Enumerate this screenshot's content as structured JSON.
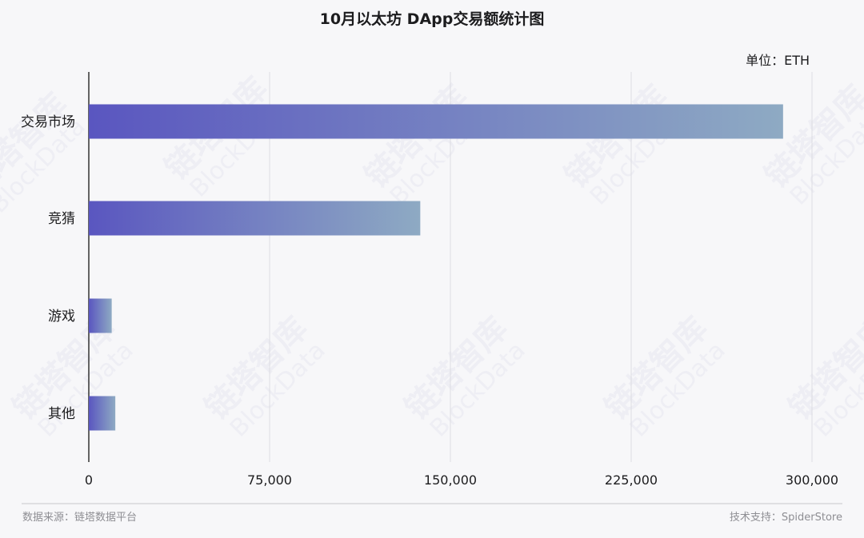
{
  "watermark": {
    "cn": "链塔智库",
    "en": "BlockData"
  },
  "chart_data": {
    "type": "bar",
    "orientation": "horizontal",
    "title": "10月以太坊 DApp交易额统计图",
    "unit_label": "单位：ETH",
    "categories": [
      "交易市场",
      "竞猜",
      "游戏",
      "其他"
    ],
    "values": [
      288000,
      137500,
      9500,
      11000
    ],
    "xlim": [
      0,
      300000
    ],
    "x_ticks": [
      0,
      75000,
      150000,
      225000,
      300000
    ],
    "x_tick_labels": [
      "0",
      "75,000",
      "150,000",
      "225,000",
      "300,000"
    ],
    "grid": "vertical",
    "bar_gradient": [
      "#5a56c0",
      "#8eaac3"
    ],
    "legend": "none"
  },
  "footer": {
    "source": "数据来源：链塔数据平台",
    "support": "技术支持：SpiderStore"
  }
}
